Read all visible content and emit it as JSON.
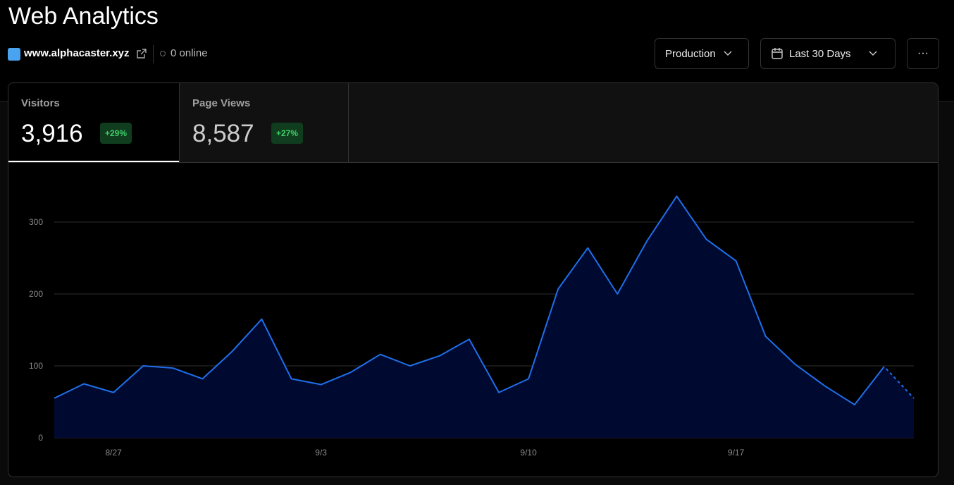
{
  "header": {
    "title": "Web Analytics",
    "site": "www.alphacaster.xyz",
    "online": "0 online",
    "environment": "Production",
    "range": "Last 30 Days"
  },
  "tabs": [
    {
      "label": "Visitors",
      "value": "3,916",
      "change": "+29%"
    },
    {
      "label": "Page Views",
      "value": "8,587",
      "change": "+27%"
    }
  ],
  "chart_data": {
    "type": "area",
    "categories": [
      null,
      null,
      "8/27",
      null,
      null,
      null,
      null,
      null,
      null,
      "9/3",
      null,
      null,
      null,
      null,
      null,
      null,
      "9/10",
      null,
      null,
      null,
      null,
      null,
      null,
      "9/17",
      null,
      null,
      null,
      null,
      null,
      null
    ],
    "series": [
      {
        "name": "Visitors",
        "color": "#1f6feb",
        "fill": "#000a30",
        "values": [
          55,
          75,
          63,
          100,
          97,
          82,
          120,
          165,
          82,
          74,
          91,
          116,
          100,
          114,
          137,
          63,
          82,
          207,
          264,
          200,
          274,
          336,
          276,
          246,
          141,
          102,
          72,
          46,
          99,
          55
        ]
      }
    ],
    "ylim": [
      0,
      350
    ],
    "yticks": [
      0,
      100,
      200,
      300
    ],
    "grid": true,
    "last_segment_dashed": true
  }
}
